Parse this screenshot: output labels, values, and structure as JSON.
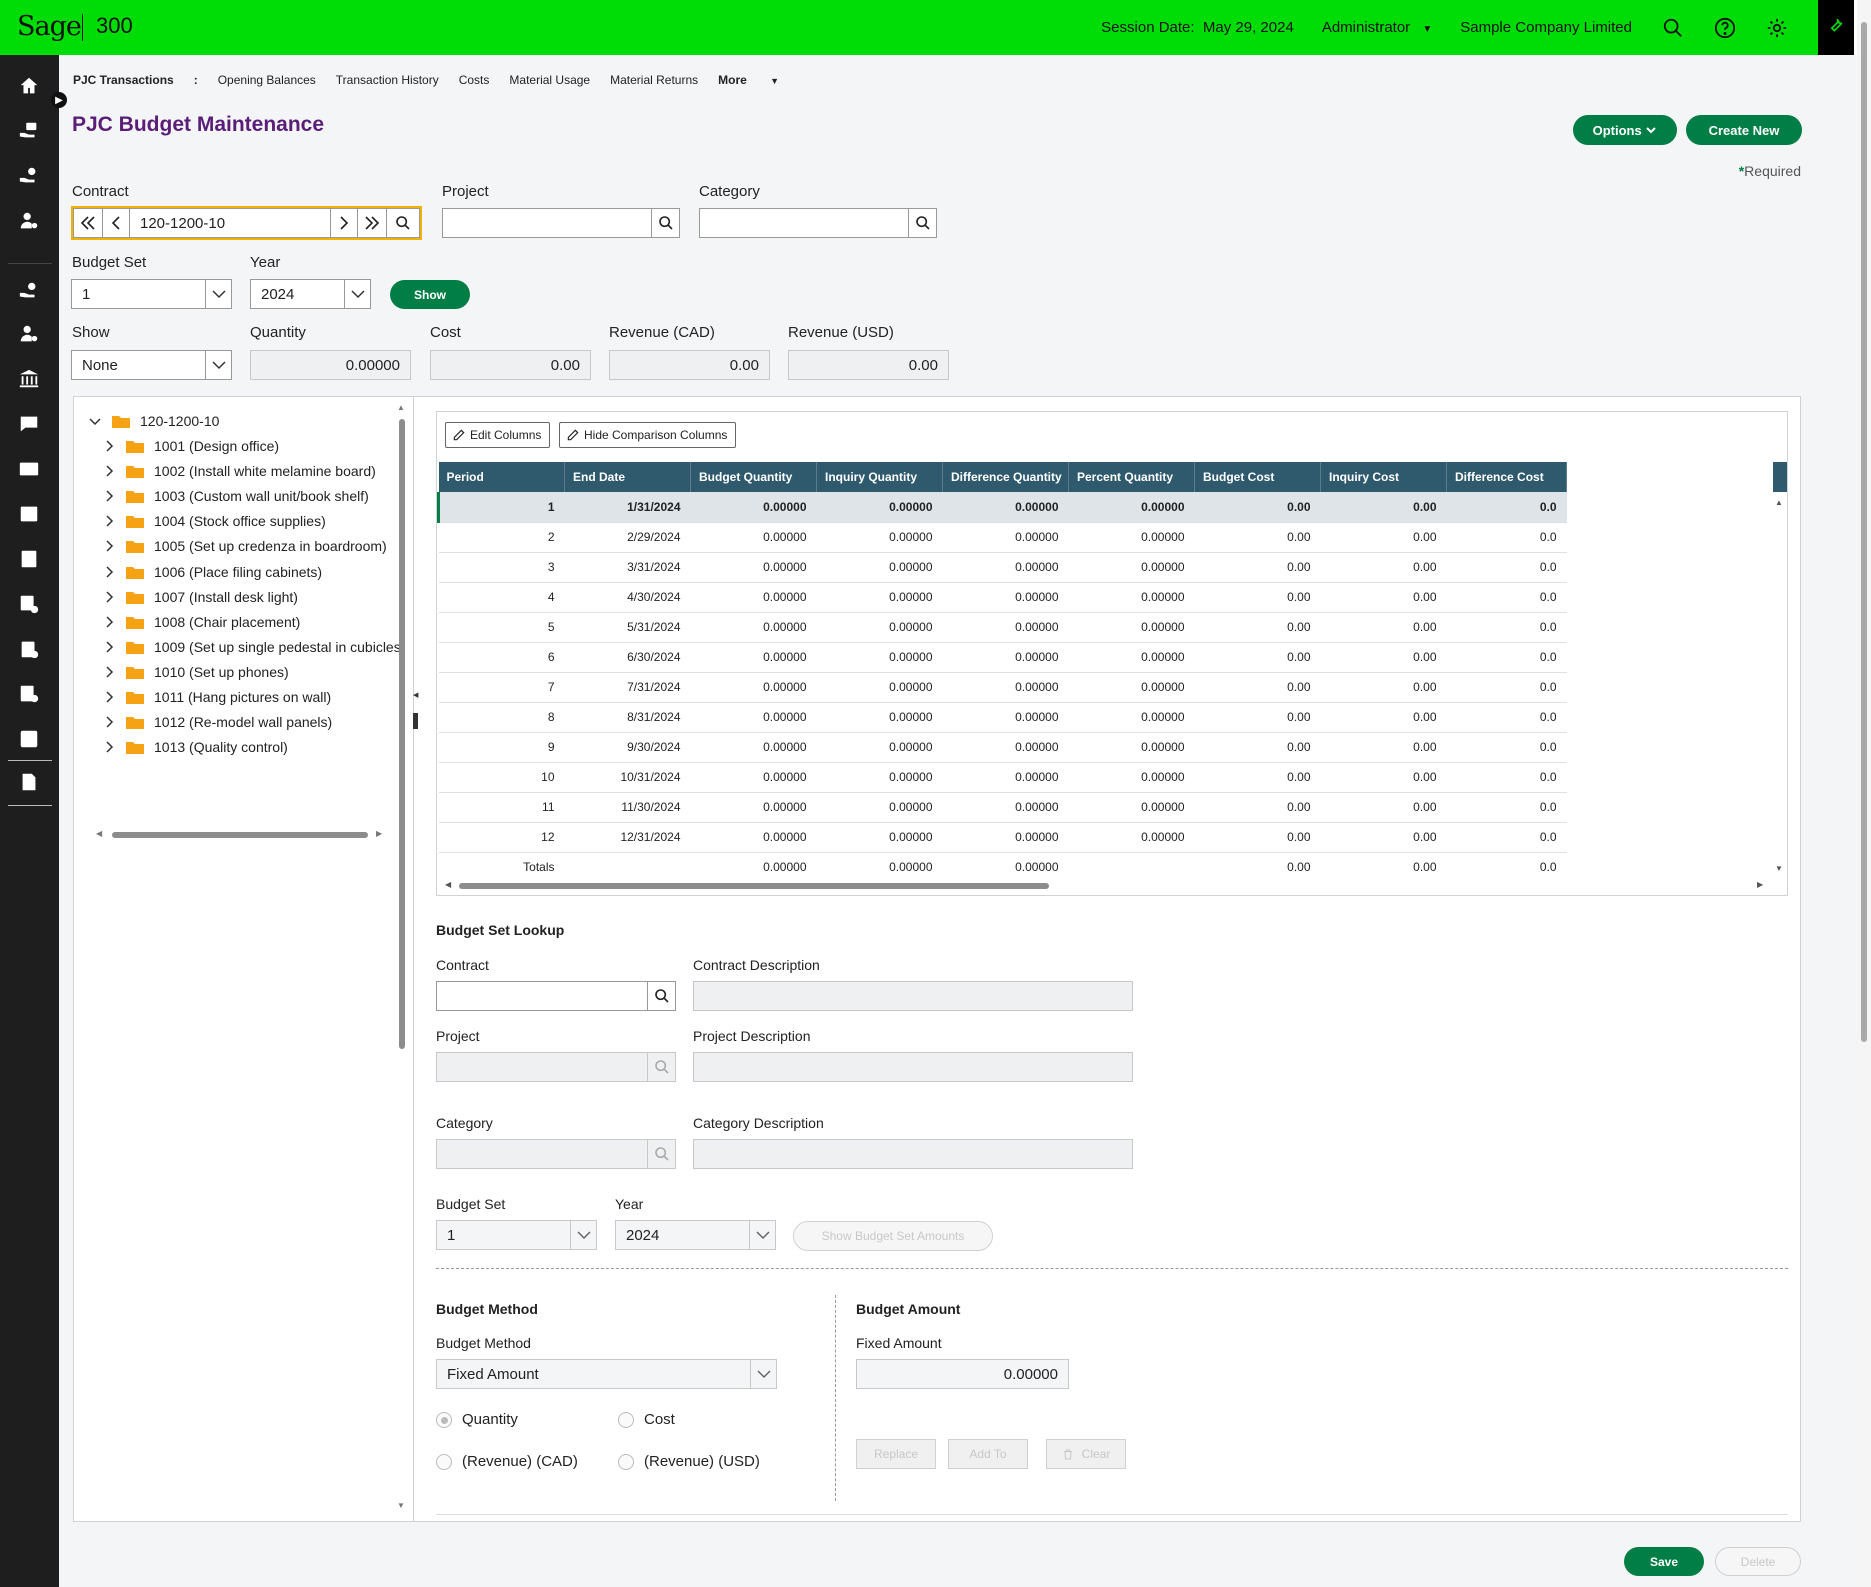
{
  "app": {
    "brand": "Sage",
    "product": "300"
  },
  "header": {
    "session_label": "Session Date:",
    "session_date": "May 29, 2024",
    "user": "Administrator",
    "company": "Sample Company Limited"
  },
  "tabs": [
    "PJC Transactions",
    ":",
    "Opening Balances",
    "Transaction History",
    "Costs",
    "Material Usage",
    "Material Returns",
    "More"
  ],
  "page": {
    "title": "PJC Budget Maintenance",
    "options_label": "Options",
    "create_label": "Create New",
    "required_mark": "*",
    "required_text": "Required"
  },
  "filters": {
    "contract_label": "Contract",
    "contract_value": "120-1200-10",
    "project_label": "Project",
    "project_value": "",
    "category_label": "Category",
    "category_value": "",
    "budget_set_label": "Budget Set",
    "budget_set_value": "1",
    "year_label": "Year",
    "year_value": "2024",
    "show_button": "Show",
    "show_label": "Show",
    "show_value": "None",
    "quantity_label": "Quantity",
    "quantity_value": "0.00000",
    "cost_label": "Cost",
    "cost_value": "0.00",
    "revenue_cad_label": "Revenue (CAD)",
    "revenue_cad_value": "0.00",
    "revenue_usd_label": "Revenue (USD)",
    "revenue_usd_value": "0.00"
  },
  "tree": {
    "root": "120-1200-10",
    "items": [
      "1001 (Design office)",
      "1002 (Install white melamine board)",
      "1003 (Custom wall unit/book shelf)",
      "1004 (Stock office supplies)",
      "1005 (Set up credenza in boardroom)",
      "1006 (Place filing cabinets)",
      "1007 (Install desk light)",
      "1008 (Chair placement)",
      "1009 (Set up single pedestal in cubicles)",
      "1010 (Set up phones)",
      "1011 (Hang pictures on wall)",
      "1012 (Re-model wall panels)",
      "1013 (Quality control)"
    ]
  },
  "grid": {
    "edit_columns": "Edit Columns",
    "hide_comparison": "Hide Comparison Columns",
    "columns": [
      "Period",
      "End Date",
      "Budget Quantity",
      "Inquiry Quantity",
      "Difference Quantity",
      "Percent Quantity",
      "Budget Cost",
      "Inquiry Cost",
      "Difference Cost"
    ],
    "rows": [
      [
        "1",
        "1/31/2024",
        "0.00000",
        "0.00000",
        "0.00000",
        "0.00000",
        "0.00",
        "0.00",
        "0.0"
      ],
      [
        "2",
        "2/29/2024",
        "0.00000",
        "0.00000",
        "0.00000",
        "0.00000",
        "0.00",
        "0.00",
        "0.0"
      ],
      [
        "3",
        "3/31/2024",
        "0.00000",
        "0.00000",
        "0.00000",
        "0.00000",
        "0.00",
        "0.00",
        "0.0"
      ],
      [
        "4",
        "4/30/2024",
        "0.00000",
        "0.00000",
        "0.00000",
        "0.00000",
        "0.00",
        "0.00",
        "0.0"
      ],
      [
        "5",
        "5/31/2024",
        "0.00000",
        "0.00000",
        "0.00000",
        "0.00000",
        "0.00",
        "0.00",
        "0.0"
      ],
      [
        "6",
        "6/30/2024",
        "0.00000",
        "0.00000",
        "0.00000",
        "0.00000",
        "0.00",
        "0.00",
        "0.0"
      ],
      [
        "7",
        "7/31/2024",
        "0.00000",
        "0.00000",
        "0.00000",
        "0.00000",
        "0.00",
        "0.00",
        "0.0"
      ],
      [
        "8",
        "8/31/2024",
        "0.00000",
        "0.00000",
        "0.00000",
        "0.00000",
        "0.00",
        "0.00",
        "0.0"
      ],
      [
        "9",
        "9/30/2024",
        "0.00000",
        "0.00000",
        "0.00000",
        "0.00000",
        "0.00",
        "0.00",
        "0.0"
      ],
      [
        "10",
        "10/31/2024",
        "0.00000",
        "0.00000",
        "0.00000",
        "0.00000",
        "0.00",
        "0.00",
        "0.0"
      ],
      [
        "11",
        "11/30/2024",
        "0.00000",
        "0.00000",
        "0.00000",
        "0.00000",
        "0.00",
        "0.00",
        "0.0"
      ],
      [
        "12",
        "12/31/2024",
        "0.00000",
        "0.00000",
        "0.00000",
        "0.00000",
        "0.00",
        "0.00",
        "0.0"
      ],
      [
        "Totals",
        "",
        "0.00000",
        "0.00000",
        "0.00000",
        "",
        "0.00",
        "0.00",
        "0.0"
      ]
    ]
  },
  "lookup": {
    "title": "Budget Set Lookup",
    "contract_label": "Contract",
    "contract_desc_label": "Contract Description",
    "project_label": "Project",
    "project_desc_label": "Project Description",
    "category_label": "Category",
    "category_desc_label": "Category Description",
    "budget_set_label": "Budget Set",
    "budget_set_value": "1",
    "year_label": "Year",
    "year_value": "2024",
    "show_amounts": "Show Budget Set Amounts"
  },
  "method": {
    "title": "Budget Method",
    "label": "Budget Method",
    "value": "Fixed Amount",
    "radios": [
      "Quantity",
      "Cost",
      "(Revenue) (CAD)",
      "(Revenue) (USD)"
    ]
  },
  "amount": {
    "title": "Budget Amount",
    "label": "Fixed Amount",
    "value": "0.00000",
    "replace": "Replace",
    "add_to": "Add To",
    "clear": "Clear"
  },
  "footer": {
    "save": "Save",
    "delete": "Delete"
  },
  "colors": {
    "brand_green": "#00dc06",
    "button_green": "#007e45",
    "title_purple": "#5b1e78",
    "grid_header": "#2f5a6e",
    "folder": "#f5a214"
  }
}
